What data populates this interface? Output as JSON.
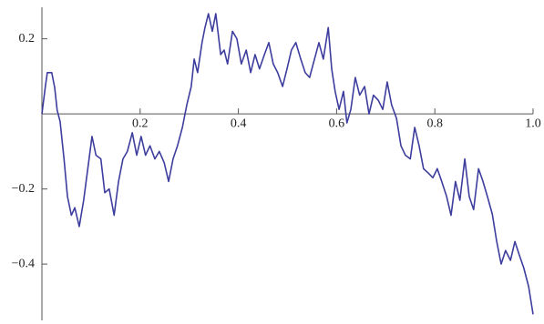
{
  "chart_data": {
    "type": "line",
    "x": [
      0,
      0.007,
      0.011,
      0.02,
      0.026,
      0.031,
      0.037,
      0.045,
      0.052,
      0.06,
      0.067,
      0.076,
      0.085,
      0.095,
      0.102,
      0.11,
      0.12,
      0.128,
      0.137,
      0.147,
      0.156,
      0.165,
      0.174,
      0.184,
      0.193,
      0.202,
      0.211,
      0.22,
      0.23,
      0.239,
      0.249,
      0.258,
      0.267,
      0.276,
      0.286,
      0.295,
      0.304,
      0.31,
      0.317,
      0.326,
      0.332,
      0.339,
      0.347,
      0.354,
      0.364,
      0.371,
      0.378,
      0.388,
      0.397,
      0.406,
      0.416,
      0.425,
      0.434,
      0.443,
      0.453,
      0.462,
      0.471,
      0.48,
      0.49,
      0.499,
      0.508,
      0.517,
      0.527,
      0.536,
      0.545,
      0.555,
      0.564,
      0.573,
      0.583,
      0.59,
      0.597,
      0.605,
      0.614,
      0.621,
      0.629,
      0.638,
      0.647,
      0.657,
      0.666,
      0.675,
      0.685,
      0.694,
      0.703,
      0.712,
      0.722,
      0.731,
      0.74,
      0.75,
      0.759,
      0.768,
      0.777,
      0.787,
      0.796,
      0.805,
      0.814,
      0.824,
      0.833,
      0.842,
      0.851,
      0.861,
      0.87,
      0.879,
      0.889,
      0.898,
      0.907,
      0.917,
      0.926,
      0.935,
      0.944,
      0.954,
      0.963,
      0.972,
      0.981,
      0.991,
      1.0
    ],
    "series": [
      {
        "color": "#3d3d9e",
        "values": [
          0,
          0.073,
          0.11,
          0.11,
          0.07,
          0.01,
          -0.02,
          -0.12,
          -0.22,
          -0.27,
          -0.25,
          -0.3,
          -0.23,
          -0.13,
          -0.06,
          -0.11,
          -0.12,
          -0.21,
          -0.2,
          -0.27,
          -0.18,
          -0.12,
          -0.1,
          -0.05,
          -0.11,
          -0.06,
          -0.11,
          -0.085,
          -0.12,
          -0.1,
          -0.13,
          -0.18,
          -0.12,
          -0.085,
          -0.036,
          0.024,
          0.073,
          0.146,
          0.11,
          0.19,
          0.23,
          0.267,
          0.22,
          0.267,
          0.158,
          0.17,
          0.133,
          0.22,
          0.2,
          0.133,
          0.17,
          0.11,
          0.158,
          0.12,
          0.158,
          0.19,
          0.133,
          0.11,
          0.073,
          0.12,
          0.17,
          0.19,
          0.146,
          0.11,
          0.097,
          0.146,
          0.19,
          0.146,
          0.23,
          0.12,
          0.06,
          0.012,
          0.06,
          -0.024,
          0.012,
          0.097,
          0.05,
          0.073,
          0,
          0.05,
          0.036,
          0.012,
          0.085,
          0.024,
          -0.012,
          -0.085,
          -0.11,
          -0.12,
          -0.036,
          -0.085,
          -0.146,
          -0.158,
          -0.17,
          -0.146,
          -0.18,
          -0.22,
          -0.27,
          -0.18,
          -0.23,
          -0.12,
          -0.22,
          -0.255,
          -0.146,
          -0.18,
          -0.22,
          -0.267,
          -0.34,
          -0.4,
          -0.364,
          -0.39,
          -0.34,
          -0.376,
          -0.41,
          -0.46,
          -0.534
        ]
      }
    ],
    "xlim": [
      0,
      1.0
    ],
    "ylim": [
      -0.55,
      0.284
    ],
    "xticks": [
      0.2,
      0.4,
      0.6,
      0.8,
      {
        "value": 1,
        "label": "1.0"
      }
    ],
    "yticks": [
      0.2,
      {
        "value": -0.2,
        "label": "−0.2"
      },
      {
        "value": -0.4,
        "label": "−0.4"
      }
    ]
  }
}
